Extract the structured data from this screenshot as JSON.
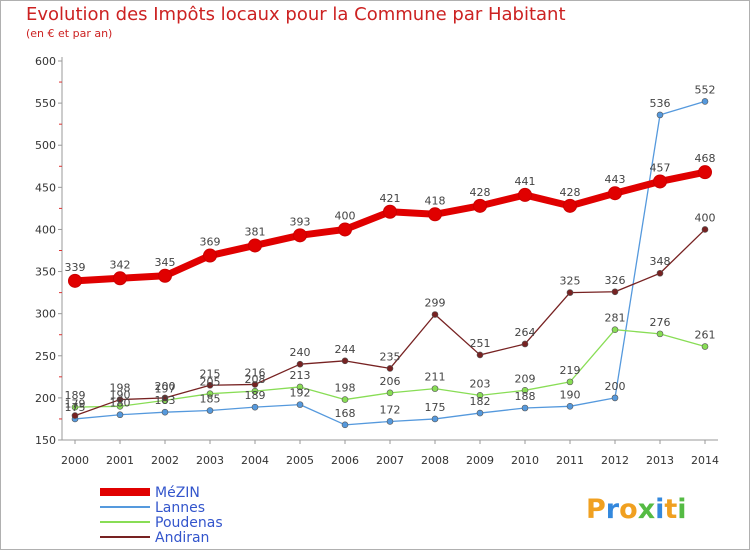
{
  "chart_data": {
    "type": "line",
    "title": "Evolution des Impôts locaux pour la Commune par Habitant",
    "subtitle": "(en € et par an)",
    "x": [
      "2000",
      "2001",
      "2002",
      "2003",
      "2004",
      "2005",
      "2006",
      "2007",
      "2008",
      "2009",
      "2010",
      "2011",
      "2012",
      "2013",
      "2014"
    ],
    "ylim": [
      150,
      600
    ],
    "yticks": [
      150,
      200,
      250,
      300,
      350,
      400,
      450,
      500,
      550,
      600
    ],
    "grid": false,
    "legend_position": "bottom-left",
    "series": [
      {
        "name": "MéZIN",
        "color": "#e00000",
        "values": [
          339,
          342,
          345,
          369,
          381,
          393,
          400,
          421,
          418,
          428,
          441,
          428,
          443,
          457,
          468
        ]
      },
      {
        "name": "Lannes",
        "color": "#5599dd",
        "values": [
          175,
          180,
          183,
          185,
          189,
          192,
          168,
          172,
          175,
          182,
          188,
          190,
          200,
          536,
          552
        ]
      },
      {
        "name": "Poudenas",
        "color": "#88dd55",
        "values": [
          189,
          190,
          197,
          205,
          208,
          213,
          198,
          206,
          211,
          203,
          209,
          219,
          281,
          276,
          261
        ]
      },
      {
        "name": "Andiran",
        "color": "#772222",
        "values": [
          179,
          198,
          200,
          215,
          216,
          240,
          244,
          235,
          299,
          251,
          264,
          325,
          326,
          348,
          400
        ]
      }
    ],
    "data_labels": {
      "MéZIN": [
        "339",
        "342",
        "345",
        "369",
        "381",
        "393",
        "400",
        "421",
        "418",
        "428",
        "441",
        "428",
        "443",
        "457",
        "468"
      ],
      "Lannes": [
        "175",
        "180",
        "183",
        "185",
        "189",
        "192",
        "168",
        "172",
        "175",
        "182",
        "188",
        "190",
        "200",
        "536",
        "552"
      ],
      "Poudenas": [
        "189",
        "190",
        "197",
        "205",
        "208",
        "213",
        "198",
        "206",
        "211",
        "203",
        "209",
        "219",
        "281",
        "276",
        "261"
      ],
      "Andiran": [
        "179",
        "198",
        "200",
        "215",
        "216",
        "240",
        "244",
        "235",
        "299",
        "251",
        "264",
        "325",
        "326",
        "348",
        "400"
      ]
    }
  },
  "logo_text": "Proxiti"
}
